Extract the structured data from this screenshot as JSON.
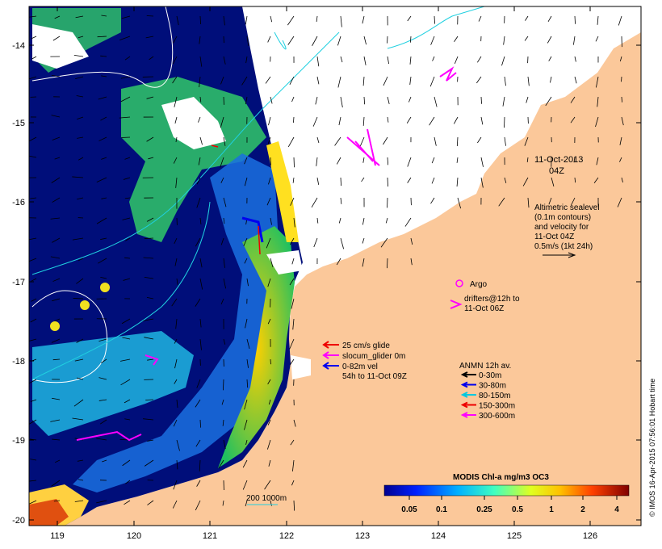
{
  "map": {
    "date_line1": "11-Oct-2013",
    "date_line2": "04Z",
    "altimetry_note": [
      "Altimetric sealevel",
      "(0.1m contours)",
      "and velocity for",
      "11-Oct 04Z",
      "0.5m/s (1kt 24h)"
    ],
    "argo_label": "Argo",
    "drifters_label": [
      "drifters@12h to",
      "11-Oct 06Z"
    ],
    "glider_legend": [
      "25 cm/s glide",
      "slocum_glider 0m",
      "0-82m vel",
      "54h to 11-Oct 09Z"
    ],
    "anmn_title": "ANMN 12h av.",
    "anmn_items": [
      {
        "label": "0-30m",
        "color": "#000000"
      },
      {
        "label": "30-80m",
        "color": "#0000ee"
      },
      {
        "label": "80-150m",
        "color": "#00c8e0"
      },
      {
        "label": "150-300m",
        "color": "#ee0000"
      },
      {
        "label": "300-600m",
        "color": "#ff00ff"
      }
    ],
    "scale_label": "200  1000m",
    "colorbar_title": "MODIS Chl-a mg/m3 OC3",
    "colorbar_ticks": [
      "0.05",
      "0.1",
      "0.25",
      "0.5",
      "1",
      "2",
      "4"
    ],
    "x_ticks": [
      "119",
      "120",
      "121",
      "122",
      "123",
      "124",
      "125",
      "126"
    ],
    "y_ticks": [
      "-14",
      "-15",
      "-16",
      "-17",
      "-18",
      "-19",
      "-20"
    ],
    "credit": "© IMOS 16-Apr-2015 07:56:01 Hobart time"
  }
}
